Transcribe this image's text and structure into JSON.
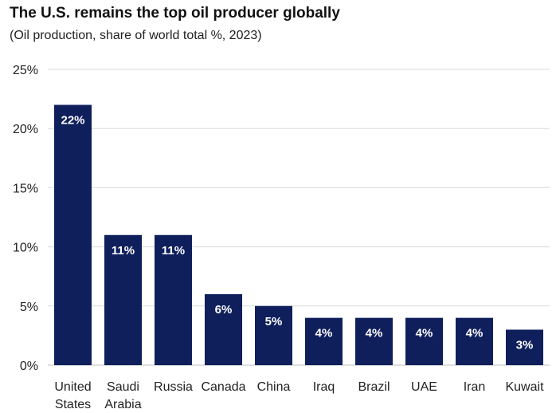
{
  "title": "The U.S. remains the top oil producer globally",
  "subtitle": "(Oil production, share of world total %, 2023)",
  "colors": {
    "bar": "#0f1f5c",
    "grid": "#d9d9d9",
    "axis": "#bfbfbf"
  },
  "chart_data": {
    "type": "bar",
    "title": "The U.S. remains the top oil producer globally",
    "subtitle": "(Oil production, share of world total %, 2023)",
    "categories": [
      [
        "United",
        "States"
      ],
      [
        "Saudi",
        "Arabia"
      ],
      [
        "Russia"
      ],
      [
        "Canada"
      ],
      [
        "China"
      ],
      [
        "Iraq"
      ],
      [
        "Brazil"
      ],
      [
        "UAE"
      ],
      [
        "Iran"
      ],
      [
        "Kuwait"
      ]
    ],
    "values": [
      22,
      11,
      11,
      6,
      5,
      4,
      4,
      4,
      4,
      3
    ],
    "data_labels": [
      "22%",
      "11%",
      "11%",
      "6%",
      "5%",
      "4%",
      "4%",
      "4%",
      "4%",
      "3%"
    ],
    "ylim": [
      0,
      25
    ],
    "yticks": [
      0,
      5,
      10,
      15,
      20,
      25
    ],
    "ytick_labels": [
      "0%",
      "5%",
      "10%",
      "15%",
      "20%",
      "25%"
    ],
    "grid": true,
    "legend": "none"
  }
}
